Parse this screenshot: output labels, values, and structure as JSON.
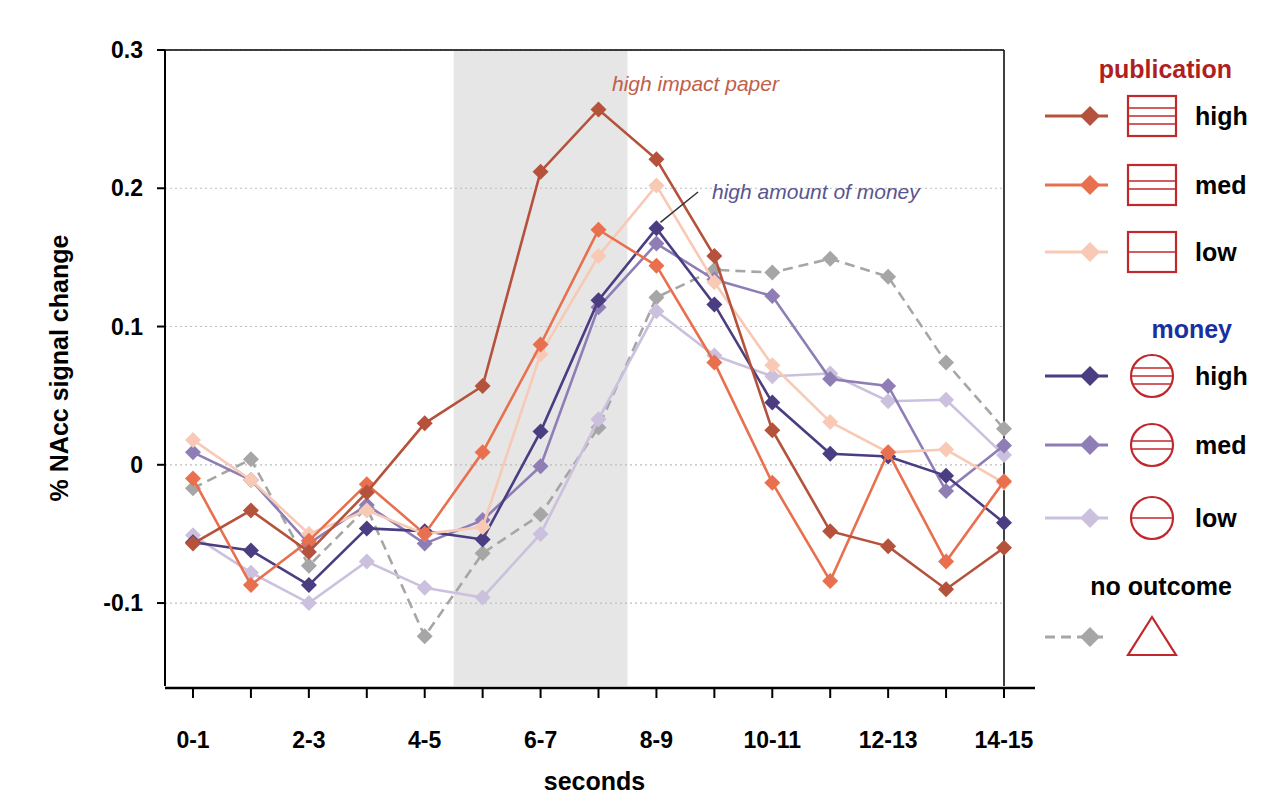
{
  "chart_data": {
    "type": "line",
    "y_label": "% NAcc signal change",
    "x_label": "seconds",
    "categories": [
      "0-1",
      null,
      "2-3",
      null,
      "4-5",
      null,
      "6-7",
      null,
      "8-9",
      null,
      "10-11",
      null,
      "12-13",
      null,
      "14-15"
    ],
    "ylim": [
      -0.16,
      0.3
    ],
    "yticks": [
      {
        "value": -0.1,
        "label": "-0.1"
      },
      0,
      0.1,
      0.2,
      0.3
    ],
    "grid": true,
    "shaded_region": [
      4.5,
      7.5
    ],
    "legend": "right",
    "legend_groups": [
      {
        "title": "publication",
        "color": "#b01e1e"
      },
      {
        "title": "money",
        "color": "#1a2fa0"
      },
      {
        "title": "no outcome",
        "color": "#000000"
      }
    ],
    "annotations": [
      {
        "text": "high impact paper",
        "color": "#c0604a"
      },
      {
        "text": "high amount of money",
        "color": "#5a5590"
      }
    ],
    "series": [
      {
        "name": "high",
        "group": "publication",
        "color": "#b5523b",
        "marker": "diamond",
        "line_style": "solid",
        "values": [
          -0.057,
          -0.033,
          -0.063,
          -0.02,
          0.03,
          0.057,
          0.212,
          0.257,
          0.221,
          0.151,
          0.025,
          -0.048,
          -0.059,
          -0.09,
          -0.06
        ]
      },
      {
        "name": "med",
        "group": "publication",
        "color": "#e8704e",
        "marker": "diamond",
        "line_style": "solid",
        "values": [
          -0.01,
          -0.087,
          -0.055,
          -0.014,
          -0.05,
          0.009,
          0.087,
          0.17,
          0.144,
          0.074,
          -0.013,
          -0.084,
          0.009,
          -0.07,
          -0.012
        ]
      },
      {
        "name": "low",
        "group": "publication",
        "color": "#f8c9b5",
        "marker": "diamond",
        "line_style": "solid",
        "values": [
          0.018,
          -0.011,
          -0.05,
          -0.033,
          -0.05,
          -0.045,
          0.08,
          0.151,
          0.202,
          0.132,
          0.072,
          0.031,
          0.009,
          0.011,
          -0.013
        ]
      },
      {
        "name": "high",
        "group": "money",
        "color": "#4b3d82",
        "marker": "diamond",
        "line_style": "solid",
        "values": [
          -0.056,
          -0.062,
          -0.087,
          -0.046,
          -0.048,
          -0.054,
          0.024,
          0.119,
          0.171,
          0.116,
          0.045,
          0.008,
          0.006,
          -0.008,
          -0.042
        ]
      },
      {
        "name": "med",
        "group": "money",
        "color": "#8f7db5",
        "marker": "diamond",
        "line_style": "solid",
        "values": [
          0.009,
          -0.011,
          -0.057,
          -0.029,
          -0.057,
          -0.04,
          -0.001,
          0.114,
          0.16,
          0.134,
          0.122,
          0.062,
          0.057,
          -0.019,
          0.014
        ]
      },
      {
        "name": "low",
        "group": "money",
        "color": "#cbc0de",
        "marker": "diamond",
        "line_style": "solid",
        "values": [
          -0.051,
          -0.078,
          -0.1,
          -0.07,
          -0.089,
          -0.096,
          -0.05,
          0.033,
          0.111,
          0.079,
          0.064,
          0.066,
          0.046,
          0.047,
          0.007
        ]
      },
      {
        "group": "no outcome",
        "color": "#a6a6a6",
        "marker": "diamond",
        "line_style": "dashed",
        "values": [
          -0.017,
          0.004,
          -0.073,
          -0.031,
          -0.124,
          -0.064,
          -0.036,
          0.027,
          0.121,
          0.141,
          0.139,
          0.149,
          0.136,
          0.074,
          0.026
        ]
      }
    ]
  }
}
